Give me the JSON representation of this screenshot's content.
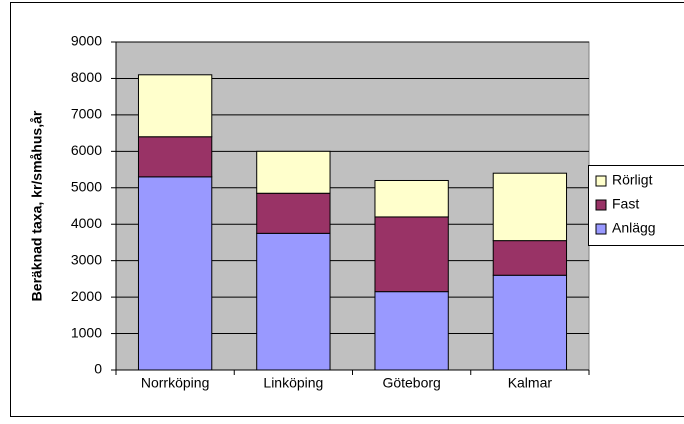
{
  "chart_data": {
    "type": "stacked_bar",
    "y_label": "Beräknad taxa, kr/småhus,år",
    "categories": [
      "Norrköping",
      "Linköping",
      "Göteborg",
      "Kalmar"
    ],
    "series": [
      {
        "name": "Anlägg",
        "color": "#9999ff",
        "values": [
          5300,
          3750,
          2150,
          2600
        ]
      },
      {
        "name": "Fast",
        "color": "#993366",
        "values": [
          1100,
          1100,
          2050,
          950
        ]
      },
      {
        "name": "Rörligt",
        "color": "#ffffcc",
        "values": [
          1700,
          1150,
          1000,
          1850
        ]
      }
    ],
    "ylim": [
      0,
      9000
    ],
    "yticks": [
      0,
      1000,
      2000,
      3000,
      4000,
      5000,
      6000,
      7000,
      8000,
      9000
    ],
    "grid": true,
    "legend": "right"
  }
}
